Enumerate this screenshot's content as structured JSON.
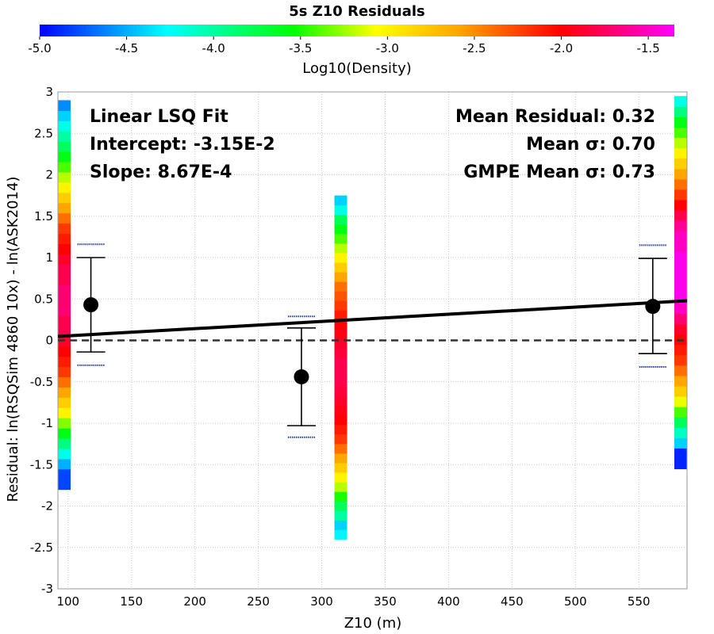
{
  "chart_data": {
    "type": "scatter",
    "title": "5s Z10 Residuals",
    "xlabel": "Z10 (m)",
    "ylabel": "Residual: ln(RSQSim 4860 10x) - ln(ASK2014)",
    "xlim": [
      92,
      588
    ],
    "ylim": [
      -3,
      3
    ],
    "x_ticks": [
      "100",
      "150",
      "200",
      "250",
      "300",
      "350",
      "400",
      "450",
      "500",
      "550"
    ],
    "y_ticks": [
      "3",
      "2.5",
      "2",
      "1.5",
      "1",
      "0.5",
      "0",
      "-0.5",
      "-1",
      "-1.5",
      "-2",
      "-2.5",
      "-3"
    ],
    "grid": true,
    "colorbar": {
      "label": "Log10(Density)",
      "range": [
        -5.0,
        -1.35
      ],
      "ticks": [
        "-5.0",
        "-4.5",
        "-4.0",
        "-3.5",
        "-3.0",
        "-2.5",
        "-2.0",
        "-1.5"
      ]
    },
    "fit_line": {
      "intercept": -0.0315,
      "slope": 0.000867
    },
    "annotations": {
      "left": [
        "Linear LSQ Fit",
        "Intercept: -3.15E-2",
        "Slope: 8.67E-4"
      ],
      "right": [
        "Mean Residual: 0.32",
        "Mean σ: 0.70",
        "GMPE Mean σ: 0.73"
      ]
    },
    "points": [
      {
        "x": 118,
        "y": 0.43,
        "err_low": -0.14,
        "err_high": 1.0,
        "gmpe_low": -0.3,
        "gmpe_high": 1.16
      },
      {
        "x": 284,
        "y": -0.44,
        "err_low": -1.03,
        "err_high": 0.15,
        "gmpe_low": -1.17,
        "gmpe_high": 0.29
      },
      {
        "x": 561,
        "y": 0.41,
        "err_low": -0.16,
        "err_high": 0.99,
        "gmpe_low": -0.32,
        "gmpe_high": 1.15
      }
    ],
    "density_columns": [
      {
        "x": 97,
        "ymin": -1.8,
        "ymax": 2.9,
        "levels": [
          -4.8,
          -4.8,
          -4.5,
          -4.2,
          -3.9,
          -3.6,
          -3.3,
          -3.0,
          -2.8,
          -2.6,
          -2.4,
          -2.2,
          -2.1,
          -2.0,
          -1.9,
          -1.8,
          -1.8,
          -1.7,
          -1.7,
          -1.7,
          -1.8,
          -1.8,
          -1.9,
          -2.0,
          -2.1,
          -2.2,
          -2.4,
          -2.6,
          -2.8,
          -3.0,
          -3.2,
          -3.4,
          -3.6,
          -3.8,
          -4.0,
          -4.2,
          -4.4,
          -4.6
        ]
      },
      {
        "x": 315,
        "ymin": -2.4,
        "ymax": 1.75,
        "levels": [
          -4.3,
          -4.4,
          -4.0,
          -3.8,
          -3.5,
          -3.2,
          -3.0,
          -2.8,
          -2.6,
          -2.4,
          -2.2,
          -2.1,
          -2.0,
          -1.95,
          -1.9,
          -1.85,
          -1.8,
          -1.8,
          -1.8,
          -1.85,
          -1.9,
          -1.95,
          -2.0,
          -2.1,
          -2.2,
          -2.3,
          -2.4,
          -2.6,
          -2.8,
          -3.0,
          -3.2,
          -3.4,
          -3.6,
          -3.8,
          -4.2,
          -4.4
        ]
      },
      {
        "x": 583,
        "ymin": -1.55,
        "ymax": 2.95,
        "levels": [
          -4.9,
          -4.9,
          -4.4,
          -4.1,
          -3.8,
          -3.4,
          -3.1,
          -2.8,
          -2.6,
          -2.4,
          -2.2,
          -2.1,
          -2.0,
          -1.9,
          -1.7,
          -1.5,
          -1.4,
          -1.4,
          -1.4,
          -1.4,
          -1.4,
          -1.5,
          -1.5,
          -1.6,
          -1.8,
          -2.0,
          -2.2,
          -2.4,
          -2.6,
          -2.8,
          -3.0,
          -3.2,
          -3.4,
          -3.6,
          -3.9,
          -4.2
        ]
      }
    ]
  }
}
